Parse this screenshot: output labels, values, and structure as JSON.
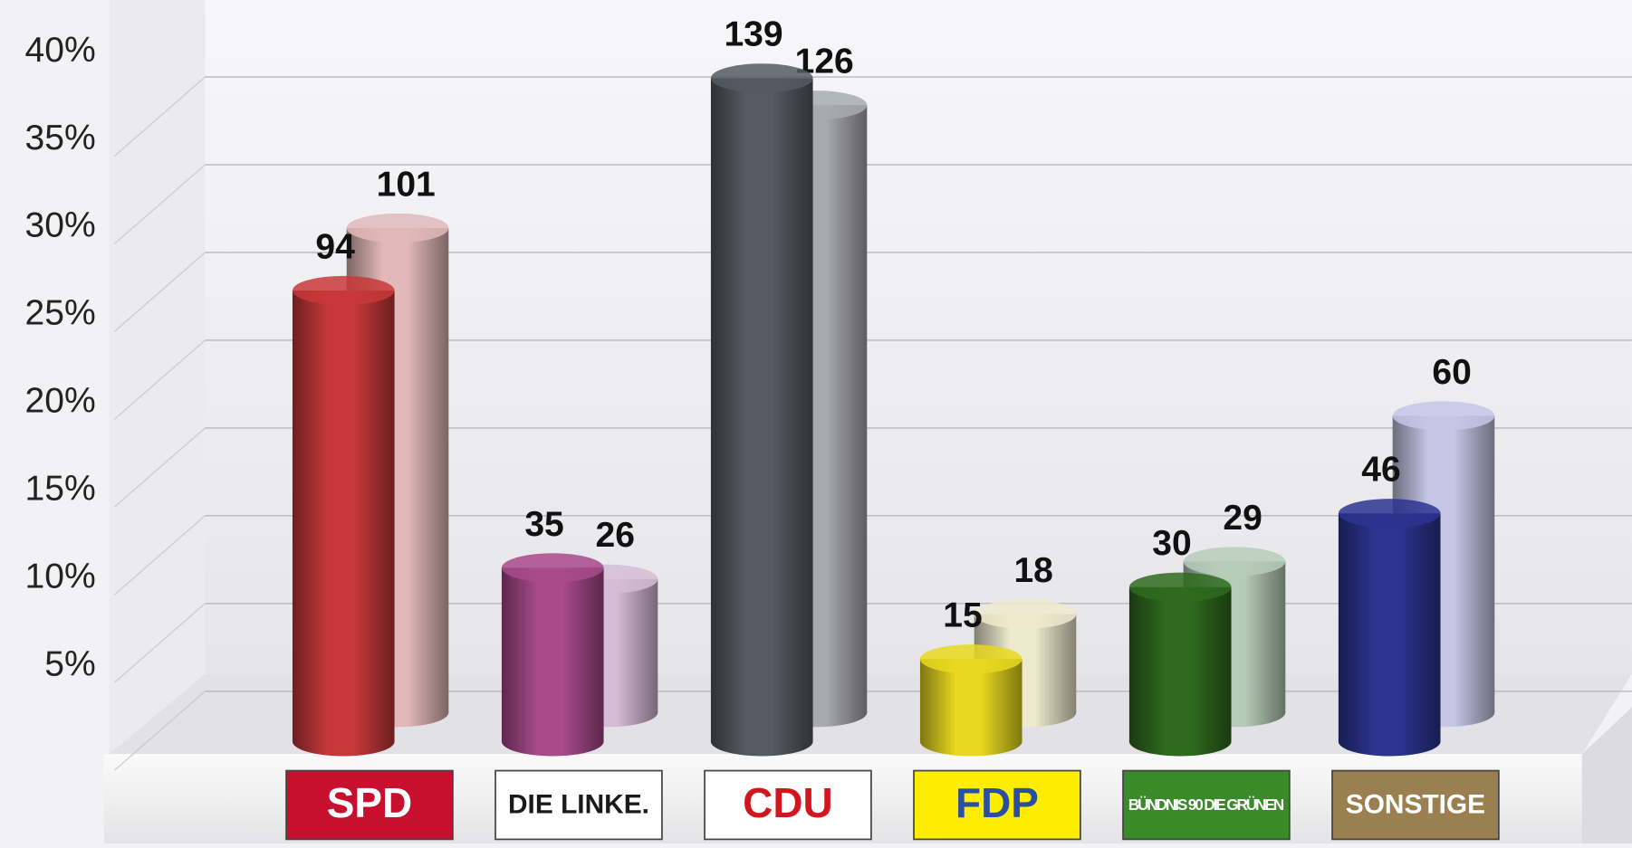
{
  "chart_data": {
    "type": "bar3d",
    "categories": [
      "SPD",
      "DIE LINKE.",
      "CDU",
      "FDP",
      "BÜNDNIS 90 DIE GRÜNEN",
      "SONSTIGE"
    ],
    "category_colors": [
      "#c8102e",
      "#ffffff",
      "#ffffff",
      "#ffed00",
      "#3a8a2a",
      "#9a8050"
    ],
    "category_text_colors": [
      "#ffffff",
      "#1a1a1a",
      "#d2161e",
      "#2a4fa0",
      "#ffffff",
      "#ffffff"
    ],
    "series": [
      {
        "colors": [
          "#c8383a",
          "#a84a8c",
          "#555b62",
          "#e8d820",
          "#2f6a1e",
          "#2c3490"
        ],
        "values": [
          25.7,
          9.9,
          37.8,
          4.7,
          8.8,
          13.0
        ],
        "seats": [
          94,
          35,
          139,
          15,
          30,
          46
        ]
      },
      {
        "colors": [
          "#e2b8b8",
          "#d6bcd6",
          "#a9a9b2",
          "#eeeace",
          "#b7ccb8",
          "#c6c6e6"
        ],
        "values": [
          27.6,
          7.6,
          34.6,
          5.6,
          8.6,
          16.9
        ],
        "seats": [
          101,
          26,
          126,
          18,
          29,
          60
        ]
      }
    ],
    "ylim": [
      0,
      40
    ],
    "yticks": [
      {
        "value": 5,
        "label": "5%"
      },
      {
        "value": 10,
        "label": "10%"
      },
      {
        "value": 15,
        "label": "15%"
      },
      {
        "value": 20,
        "label": "20%"
      },
      {
        "value": 25,
        "label": "25%"
      },
      {
        "value": 30,
        "label": "30%"
      },
      {
        "value": 35,
        "label": "35%"
      },
      {
        "value": 40,
        "label": "40%"
      }
    ],
    "grid": true
  }
}
